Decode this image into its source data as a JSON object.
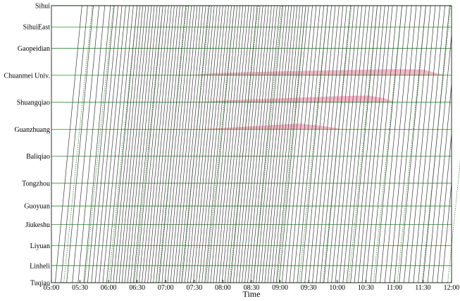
{
  "chart_data": {
    "type": "line",
    "chart_kind": "train-timetable",
    "xlabel": "Time",
    "ylabel": "",
    "x_ticks": [
      "05:00",
      "05:30",
      "06:00",
      "06:30",
      "07:00",
      "07:30",
      "08:00",
      "08:30",
      "09:00",
      "09:30",
      "10:00",
      "10:30",
      "11:00",
      "11:30",
      "12:00"
    ],
    "x_range_minutes": [
      300,
      720
    ],
    "stations": [
      {
        "name": "Sihui",
        "km": 0.0
      },
      {
        "name": "SihuiEast",
        "km": 1.5
      },
      {
        "name": "Gaopeidian",
        "km": 3.0
      },
      {
        "name": "Chuanmei Univ.",
        "km": 4.9
      },
      {
        "name": "Shuangqiao",
        "km": 6.8
      },
      {
        "name": "Guanzhuang",
        "km": 8.7
      },
      {
        "name": "Baliqiao",
        "km": 10.6
      },
      {
        "name": "Tongzhou",
        "km": 12.5
      },
      {
        "name": "Guoyuan",
        "km": 14.1
      },
      {
        "name": "Jiukeshu",
        "km": 15.4
      },
      {
        "name": "Liyuan",
        "km": 16.9
      },
      {
        "name": "Linheli",
        "km": 18.3
      },
      {
        "name": "Tuqiao",
        "km": 19.5
      }
    ],
    "trains": {
      "direction": "Tuqiao to Sihui",
      "first_departure_min": 304,
      "last_departure_min": 714,
      "travel_time_min": 28,
      "headways": [
        {
          "until_min": 330,
          "headway_min": 6
        },
        {
          "until_min": 360,
          "headway_min": 4
        },
        {
          "until_min": 540,
          "headway_min": 3
        },
        {
          "until_min": 630,
          "headway_min": 4
        },
        {
          "until_min": 720,
          "headway_min": 5
        }
      ],
      "color": "#3a3a3a"
    },
    "dispatch_lines": {
      "departures_min": [
        313,
        335,
        360,
        387,
        412,
        436,
        462,
        487,
        512,
        537,
        560,
        585,
        612,
        638,
        663,
        689,
        716
      ],
      "travel_time_min": 30,
      "color": "#2e8b2e",
      "dash": true
    },
    "queues": [
      {
        "station": "Chuanmei Univ.",
        "start_min": 447,
        "end_min": 713,
        "peaks": [
          [
            470,
            0.35
          ],
          [
            540,
            0.6
          ],
          [
            600,
            0.8
          ],
          [
            660,
            0.95
          ],
          [
            690,
            0.9
          ]
        ],
        "max_height_km": 0.45,
        "color": "#f4a0b8"
      },
      {
        "station": "Shuangqiao",
        "start_min": 452,
        "end_min": 660,
        "peaks": [
          [
            480,
            0.25
          ],
          [
            540,
            0.55
          ],
          [
            600,
            0.85
          ],
          [
            632,
            0.95
          ],
          [
            650,
            0.55
          ]
        ],
        "max_height_km": 0.5,
        "color": "#f4a0b8"
      },
      {
        "station": "Guanzhuang",
        "start_min": 455,
        "end_min": 605,
        "peaks": [
          [
            480,
            0.2
          ],
          [
            520,
            0.55
          ],
          [
            560,
            0.9
          ],
          [
            585,
            0.5
          ]
        ],
        "max_height_km": 0.45,
        "color": "#f4a0b8"
      },
      {
        "station": "Baliqiao",
        "start_min": 470,
        "end_min": 540,
        "peaks": [
          [
            500,
            0.6
          ],
          [
            520,
            0.5
          ]
        ],
        "max_height_km": 0.06,
        "color": "#f4a0b8"
      },
      {
        "station": "Tongzhou",
        "start_min": 478,
        "end_min": 520,
        "peaks": [
          [
            495,
            0.6
          ],
          [
            510,
            0.4
          ]
        ],
        "max_height_km": 0.05,
        "color": "#f4a0b8"
      }
    ],
    "grid": true,
    "legend": "none",
    "colors": {
      "station_line": "#2e8b2e",
      "train_line": "#3a3a3a",
      "queue_fill": "#f4a0b8",
      "frame": "#000000"
    }
  }
}
